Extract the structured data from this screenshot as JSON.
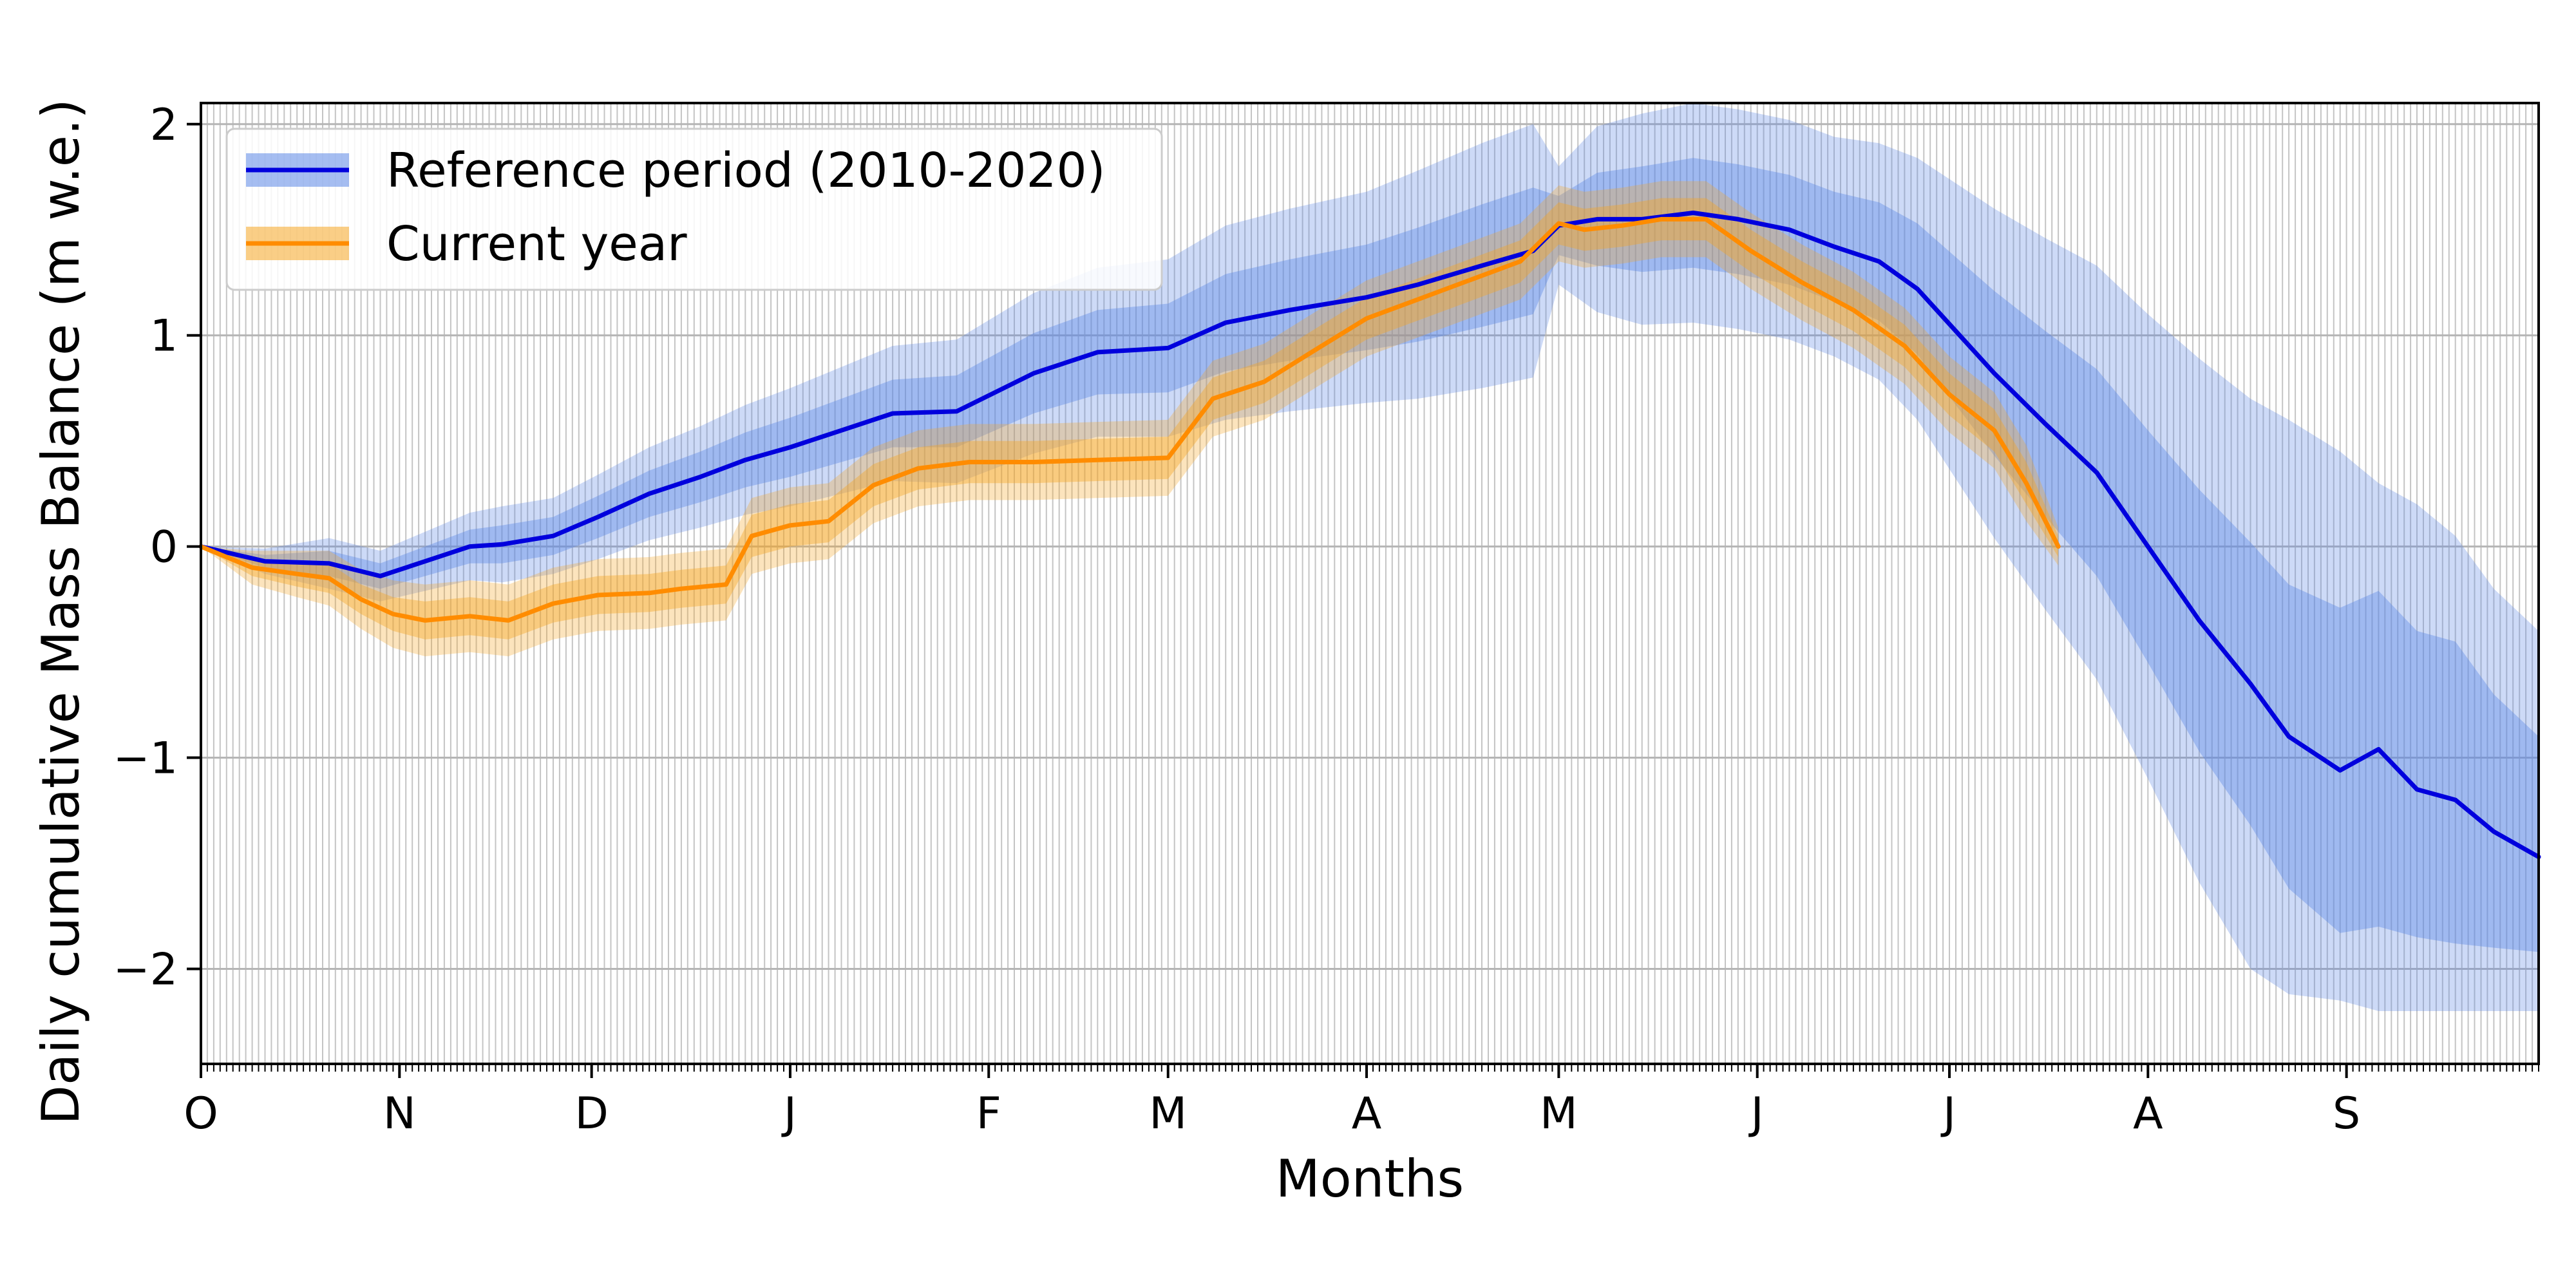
{
  "chart_data": {
    "type": "line",
    "title": "",
    "xlabel": "Months",
    "ylabel": "Daily cumulative Mass Balance (m w.e.)",
    "xlim": [
      0,
      365
    ],
    "ylim": [
      -2.45,
      2.1
    ],
    "grid": true,
    "legend_position": "top-left",
    "x_ticks": [
      {
        "day": 0,
        "label": "O"
      },
      {
        "day": 31,
        "label": "N"
      },
      {
        "day": 61,
        "label": "D"
      },
      {
        "day": 92,
        "label": "J"
      },
      {
        "day": 123,
        "label": "F"
      },
      {
        "day": 151,
        "label": "M"
      },
      {
        "day": 182,
        "label": "A"
      },
      {
        "day": 212,
        "label": "M"
      },
      {
        "day": 243,
        "label": "J"
      },
      {
        "day": 273,
        "label": "J"
      },
      {
        "day": 304,
        "label": "A"
      },
      {
        "day": 335,
        "label": "S"
      }
    ],
    "y_ticks": [
      {
        "value": -2,
        "label": "−2"
      },
      {
        "value": -1,
        "label": "−1"
      },
      {
        "value": 0,
        "label": "0"
      },
      {
        "value": 1,
        "label": "1"
      },
      {
        "value": 2,
        "label": "2"
      }
    ],
    "series": [
      {
        "name": "Reference period (2010-2020)",
        "color": "#0000dd",
        "band_color": "#5b86e5",
        "x": [
          0,
          10,
          20,
          28,
          35,
          42,
          47,
          55,
          62,
          70,
          78,
          85,
          92,
          100,
          108,
          118,
          130,
          140,
          151,
          160,
          170,
          182,
          190,
          200,
          208,
          212,
          218,
          225,
          233,
          240,
          248,
          255,
          262,
          268,
          274,
          280,
          288,
          296,
          304,
          312,
          320,
          326,
          334,
          340,
          346,
          352,
          358,
          365
        ],
        "y": [
          0,
          -0.07,
          -0.08,
          -0.14,
          -0.07,
          0.0,
          0.01,
          0.05,
          0.14,
          0.25,
          0.33,
          0.41,
          0.47,
          0.55,
          0.63,
          0.64,
          0.82,
          0.92,
          0.94,
          1.06,
          1.12,
          1.18,
          1.24,
          1.33,
          1.4,
          1.52,
          1.55,
          1.55,
          1.58,
          1.55,
          1.5,
          1.42,
          1.35,
          1.22,
          1.02,
          0.82,
          0.58,
          0.35,
          0.0,
          -0.35,
          -0.65,
          -0.9,
          -1.06,
          -0.96,
          -1.15,
          -1.2,
          -1.35,
          -1.47
        ],
        "inner_lower": [
          0,
          -0.1,
          -0.14,
          -0.2,
          -0.14,
          -0.08,
          -0.08,
          -0.04,
          0.04,
          0.14,
          0.21,
          0.28,
          0.33,
          0.4,
          0.47,
          0.47,
          0.63,
          0.72,
          0.73,
          0.83,
          0.88,
          0.93,
          0.97,
          1.04,
          1.1,
          1.38,
          1.33,
          1.3,
          1.32,
          1.29,
          1.24,
          1.16,
          1.07,
          0.91,
          0.67,
          0.43,
          0.14,
          -0.14,
          -0.55,
          -0.97,
          -1.32,
          -1.62,
          -1.83,
          -1.8,
          -1.85,
          -1.88,
          -1.9,
          -1.92
        ],
        "inner_upper": [
          0,
          -0.04,
          -0.02,
          -0.08,
          0.0,
          0.08,
          0.1,
          0.14,
          0.24,
          0.36,
          0.45,
          0.54,
          0.61,
          0.7,
          0.79,
          0.81,
          1.01,
          1.12,
          1.15,
          1.29,
          1.36,
          1.43,
          1.51,
          1.62,
          1.7,
          1.66,
          1.77,
          1.8,
          1.84,
          1.81,
          1.76,
          1.68,
          1.63,
          1.53,
          1.37,
          1.21,
          1.02,
          0.84,
          0.55,
          0.27,
          0.02,
          -0.18,
          -0.29,
          -0.21,
          -0.4,
          -0.45,
          -0.7,
          -0.9
        ],
        "outer_lower": [
          0,
          -0.13,
          -0.2,
          -0.26,
          -0.21,
          -0.16,
          -0.17,
          -0.13,
          -0.06,
          0.03,
          0.09,
          0.15,
          0.19,
          0.25,
          0.31,
          0.3,
          0.44,
          0.52,
          0.52,
          0.6,
          0.64,
          0.68,
          0.7,
          0.75,
          0.8,
          1.24,
          1.11,
          1.05,
          1.06,
          1.03,
          0.98,
          0.9,
          0.79,
          0.6,
          0.32,
          0.04,
          -0.3,
          -0.63,
          -1.1,
          -1.59,
          -2.0,
          -2.12,
          -2.15,
          -2.2,
          -2.2,
          -2.2,
          -2.2,
          -2.2
        ],
        "outer_upper": [
          0,
          -0.01,
          0.04,
          -0.02,
          0.07,
          0.16,
          0.19,
          0.23,
          0.34,
          0.47,
          0.57,
          0.67,
          0.75,
          0.85,
          0.95,
          0.98,
          1.2,
          1.32,
          1.36,
          1.52,
          1.6,
          1.68,
          1.78,
          1.91,
          2.0,
          1.8,
          1.99,
          2.05,
          2.1,
          2.07,
          2.02,
          1.94,
          1.91,
          1.84,
          1.72,
          1.6,
          1.46,
          1.33,
          1.1,
          0.89,
          0.7,
          0.6,
          0.45,
          0.3,
          0.2,
          0.05,
          -0.2,
          -0.4
        ]
      },
      {
        "name": "Current year",
        "color": "#ff8c00",
        "band_color": "#f5a623",
        "x": [
          0,
          8,
          15,
          20,
          25,
          30,
          35,
          42,
          48,
          55,
          62,
          70,
          75,
          82,
          86,
          92,
          98,
          105,
          112,
          120,
          130,
          140,
          151,
          158,
          166,
          175,
          182,
          190,
          198,
          206,
          212,
          216,
          222,
          228,
          235,
          242,
          250,
          258,
          266,
          273,
          280,
          285,
          290
        ],
        "y": [
          0,
          -0.1,
          -0.13,
          -0.15,
          -0.25,
          -0.32,
          -0.35,
          -0.33,
          -0.35,
          -0.27,
          -0.23,
          -0.22,
          -0.2,
          -0.18,
          0.05,
          0.1,
          0.12,
          0.29,
          0.37,
          0.4,
          0.4,
          0.41,
          0.42,
          0.7,
          0.78,
          0.95,
          1.08,
          1.17,
          1.26,
          1.35,
          1.53,
          1.5,
          1.52,
          1.55,
          1.55,
          1.4,
          1.25,
          1.12,
          0.95,
          0.72,
          0.55,
          0.3,
          0.0
        ],
        "inner_lower": [
          0,
          -0.14,
          -0.19,
          -0.22,
          -0.32,
          -0.4,
          -0.44,
          -0.42,
          -0.44,
          -0.36,
          -0.32,
          -0.31,
          -0.29,
          -0.27,
          -0.05,
          0.0,
          0.02,
          0.19,
          0.27,
          0.3,
          0.3,
          0.31,
          0.32,
          0.6,
          0.68,
          0.85,
          0.98,
          1.07,
          1.16,
          1.25,
          1.43,
          1.4,
          1.42,
          1.45,
          1.45,
          1.3,
          1.15,
          1.02,
          0.85,
          0.62,
          0.45,
          0.2,
          -0.05
        ],
        "inner_upper": [
          0,
          -0.06,
          -0.07,
          -0.08,
          -0.18,
          -0.24,
          -0.26,
          -0.24,
          -0.26,
          -0.18,
          -0.14,
          -0.13,
          -0.11,
          -0.09,
          0.15,
          0.2,
          0.22,
          0.39,
          0.47,
          0.5,
          0.5,
          0.51,
          0.52,
          0.8,
          0.88,
          1.05,
          1.18,
          1.27,
          1.36,
          1.45,
          1.63,
          1.6,
          1.62,
          1.65,
          1.65,
          1.5,
          1.35,
          1.22,
          1.05,
          0.82,
          0.65,
          0.4,
          0.05
        ],
        "outer_lower": [
          0,
          -0.18,
          -0.24,
          -0.28,
          -0.39,
          -0.48,
          -0.52,
          -0.5,
          -0.52,
          -0.44,
          -0.4,
          -0.39,
          -0.37,
          -0.35,
          -0.13,
          -0.08,
          -0.06,
          0.11,
          0.19,
          0.22,
          0.22,
          0.23,
          0.24,
          0.52,
          0.6,
          0.77,
          0.9,
          0.99,
          1.08,
          1.17,
          1.35,
          1.32,
          1.34,
          1.37,
          1.37,
          1.22,
          1.07,
          0.94,
          0.77,
          0.54,
          0.37,
          0.12,
          -0.09
        ],
        "outer_upper": [
          0,
          -0.02,
          -0.02,
          -0.02,
          -0.11,
          -0.16,
          -0.18,
          -0.16,
          -0.18,
          -0.1,
          -0.06,
          -0.05,
          -0.03,
          -0.01,
          0.23,
          0.28,
          0.3,
          0.47,
          0.55,
          0.58,
          0.58,
          0.59,
          0.6,
          0.88,
          0.96,
          1.13,
          1.26,
          1.35,
          1.44,
          1.53,
          1.71,
          1.68,
          1.7,
          1.73,
          1.73,
          1.58,
          1.43,
          1.3,
          1.13,
          0.9,
          0.73,
          0.48,
          0.09
        ]
      }
    ]
  }
}
